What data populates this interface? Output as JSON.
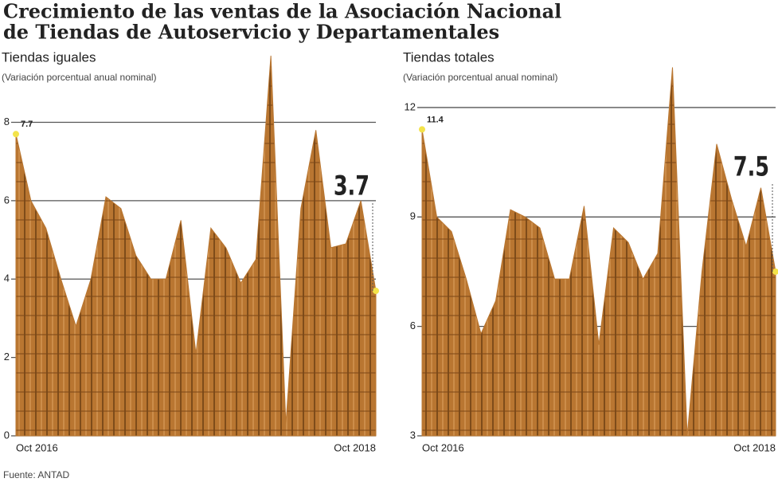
{
  "title": [
    "Crecimiento de las ventas de la Asociación Nacional",
    "de Tiendas de Autoservicio y Departamentales"
  ],
  "source": "Fuente: ANTAD",
  "chart_data": [
    {
      "type": "area",
      "title": "Tiendas iguales",
      "subtitle": "(Variación porcentual anual nominal)",
      "categories": [
        "Oct 2016",
        null,
        null,
        null,
        null,
        null,
        null,
        null,
        null,
        null,
        null,
        null,
        null,
        null,
        null,
        null,
        null,
        null,
        null,
        null,
        null,
        null,
        null,
        null,
        "Oct 2018"
      ],
      "values": [
        7.7,
        6.0,
        5.3,
        4.0,
        2.8,
        4.0,
        6.1,
        5.8,
        4.6,
        4.0,
        4.0,
        5.5,
        2.1,
        5.3,
        4.8,
        3.9,
        4.5,
        9.7,
        0.3,
        5.8,
        7.8,
        4.8,
        4.9,
        6.0,
        3.7
      ],
      "value_labels": [
        "7.7",
        null,
        null,
        null,
        null,
        null,
        null,
        null,
        null,
        null,
        null,
        null,
        null,
        null,
        null,
        null,
        null,
        null,
        null,
        null,
        null,
        null,
        null,
        null,
        "3.7"
      ],
      "color": "#b97631",
      "ylim": [
        0,
        9.8
      ],
      "yticks": [
        0,
        2,
        4,
        6,
        8
      ],
      "grid": true
    },
    {
      "type": "area",
      "title": "Tiendas totales",
      "subtitle": "(Variación porcentual anual nominal)",
      "categories": [
        "Oct 2016",
        null,
        null,
        null,
        null,
        null,
        null,
        null,
        null,
        null,
        null,
        null,
        null,
        null,
        null,
        null,
        null,
        null,
        null,
        null,
        null,
        null,
        null,
        null,
        "Oct 2018"
      ],
      "values": [
        11.4,
        9.0,
        8.6,
        7.3,
        5.8,
        6.7,
        9.2,
        9.0,
        8.7,
        7.3,
        7.3,
        9.3,
        5.5,
        8.7,
        8.3,
        7.3,
        8.0,
        13.1,
        3.0,
        7.5,
        11.0,
        9.5,
        8.2,
        9.8,
        7.5
      ],
      "value_labels": [
        "11.4",
        null,
        null,
        null,
        null,
        null,
        null,
        null,
        null,
        null,
        null,
        null,
        null,
        null,
        null,
        null,
        null,
        null,
        null,
        null,
        null,
        null,
        null,
        null,
        "7.5"
      ],
      "color": "#b97631",
      "ylim": [
        3,
        13.2
      ],
      "yticks": [
        3,
        6,
        9,
        12
      ],
      "grid": true
    }
  ]
}
